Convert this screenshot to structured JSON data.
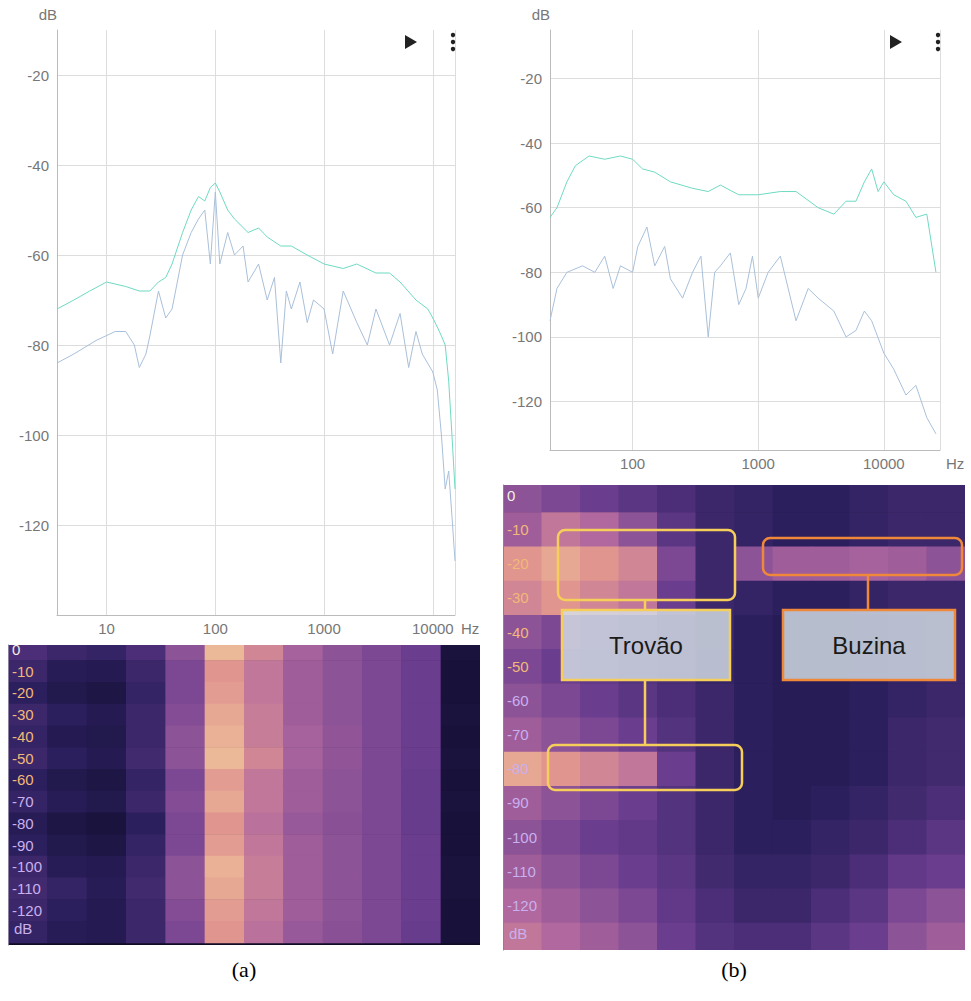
{
  "chart_data": [
    {
      "type": "line",
      "caption": "(a)",
      "log": "x",
      "grid": true,
      "xlabel": "Hz",
      "ylabel": "dB",
      "xlim": [
        3.5,
        16000
      ],
      "xticks": [
        10,
        100,
        1000,
        10000
      ],
      "ylim": [
        -140,
        -10
      ],
      "yticks": [
        -120,
        -100,
        -80,
        -60,
        -40,
        -20
      ],
      "series": [
        {
          "color": "#a9c0da",
          "x": [
            3.5,
            5,
            8,
            12,
            15,
            18,
            20,
            23,
            25,
            30,
            35,
            40,
            50,
            60,
            70,
            80,
            90,
            100,
            110,
            130,
            150,
            180,
            200,
            250,
            300,
            350,
            400,
            450,
            500,
            600,
            700,
            800,
            1000,
            1200,
            1500,
            2000,
            2500,
            3000,
            4000,
            5000,
            6000,
            7000,
            8000,
            10000,
            11000,
            12000,
            13000,
            14000,
            15000,
            16000
          ],
          "values": [
            -84,
            -82,
            -79,
            -77,
            -77,
            -80,
            -85,
            -82,
            -78,
            -68,
            -74,
            -72,
            -60,
            -55,
            -52,
            -50,
            -62,
            -46,
            -62,
            -55,
            -60,
            -58,
            -66,
            -62,
            -70,
            -65,
            -84,
            -68,
            -72,
            -66,
            -75,
            -70,
            -72,
            -82,
            -68,
            -75,
            -80,
            -72,
            -80,
            -73,
            -85,
            -77,
            -82,
            -86,
            -90,
            -100,
            -112,
            -108,
            -118,
            -128
          ]
        },
        {
          "color": "#6fdac2",
          "x": [
            3.5,
            5,
            7,
            10,
            15,
            20,
            25,
            30,
            35,
            40,
            50,
            60,
            70,
            80,
            90,
            100,
            110,
            130,
            150,
            200,
            250,
            300,
            400,
            500,
            700,
            1000,
            1500,
            2000,
            3000,
            4000,
            5000,
            7000,
            9000,
            10000,
            11000,
            12000,
            13000,
            14000,
            15000,
            16000
          ],
          "values": [
            -72,
            -70,
            -68,
            -66,
            -67,
            -68,
            -68,
            -66,
            -65,
            -62,
            -55,
            -50,
            -47,
            -48,
            -45,
            -44,
            -46,
            -50,
            -52,
            -55,
            -54,
            -56,
            -58,
            -58,
            -60,
            -62,
            -63,
            -62,
            -64,
            -64,
            -66,
            -70,
            -72,
            -74,
            -76,
            -78,
            -80,
            -88,
            -100,
            -112
          ]
        }
      ]
    },
    {
      "type": "heatmap",
      "tick_labels": "y",
      "ylabel": "dB",
      "ylim": [
        -136,
        2
      ],
      "yticks": [
        0,
        -10,
        -20,
        -30,
        -40,
        -50,
        -60,
        -70,
        -80,
        -90,
        -100,
        -110,
        -120
      ],
      "zlim": [
        0,
        1
      ],
      "intensity": [
        [
          0.35,
          0.3,
          0.28,
          0.35,
          0.55,
          0.9,
          0.75,
          0.62,
          0.55,
          0.5,
          0.45,
          0.12
        ],
        [
          0.3,
          0.22,
          0.2,
          0.3,
          0.5,
          0.8,
          0.7,
          0.6,
          0.55,
          0.5,
          0.45,
          0.1
        ],
        [
          0.25,
          0.18,
          0.15,
          0.28,
          0.5,
          0.82,
          0.7,
          0.6,
          0.55,
          0.5,
          0.45,
          0.1
        ],
        [
          0.3,
          0.25,
          0.2,
          0.3,
          0.52,
          0.85,
          0.72,
          0.6,
          0.55,
          0.5,
          0.45,
          0.12
        ],
        [
          0.28,
          0.2,
          0.18,
          0.3,
          0.55,
          0.88,
          0.72,
          0.62,
          0.56,
          0.5,
          0.45,
          0.1
        ],
        [
          0.3,
          0.25,
          0.2,
          0.32,
          0.55,
          0.9,
          0.75,
          0.62,
          0.56,
          0.5,
          0.45,
          0.12
        ],
        [
          0.25,
          0.18,
          0.15,
          0.28,
          0.5,
          0.82,
          0.7,
          0.6,
          0.55,
          0.5,
          0.44,
          0.1
        ],
        [
          0.28,
          0.22,
          0.18,
          0.3,
          0.52,
          0.85,
          0.7,
          0.6,
          0.55,
          0.5,
          0.44,
          0.12
        ],
        [
          0.22,
          0.15,
          0.12,
          0.25,
          0.5,
          0.8,
          0.68,
          0.58,
          0.54,
          0.5,
          0.44,
          0.1
        ],
        [
          0.25,
          0.18,
          0.15,
          0.28,
          0.5,
          0.82,
          0.7,
          0.6,
          0.55,
          0.5,
          0.45,
          0.1
        ],
        [
          0.3,
          0.22,
          0.2,
          0.3,
          0.55,
          0.88,
          0.72,
          0.6,
          0.55,
          0.5,
          0.45,
          0.12
        ],
        [
          0.32,
          0.28,
          0.22,
          0.32,
          0.55,
          0.85,
          0.72,
          0.6,
          0.55,
          0.5,
          0.45,
          0.12
        ],
        [
          0.3,
          0.25,
          0.2,
          0.3,
          0.52,
          0.82,
          0.7,
          0.6,
          0.55,
          0.5,
          0.45,
          0.1
        ],
        [
          0.28,
          0.22,
          0.2,
          0.3,
          0.5,
          0.8,
          0.68,
          0.58,
          0.54,
          0.5,
          0.44,
          0.1
        ]
      ]
    },
    {
      "type": "line",
      "caption": "(b)",
      "log": "x",
      "grid": true,
      "xlabel": "Hz",
      "ylabel": "dB",
      "xlim": [
        22,
        28000
      ],
      "xticks": [
        100,
        1000,
        10000
      ],
      "ylim": [
        -135,
        -5
      ],
      "yticks": [
        -120,
        -100,
        -80,
        -60,
        -40,
        -20
      ],
      "series": [
        {
          "color": "#a9c0da",
          "x": [
            22,
            25,
            30,
            40,
            50,
            60,
            70,
            80,
            100,
            110,
            130,
            150,
            180,
            200,
            250,
            300,
            350,
            400,
            450,
            500,
            600,
            700,
            800,
            900,
            1000,
            1200,
            1500,
            2000,
            2500,
            3000,
            4000,
            5000,
            6000,
            7000,
            8000,
            10000,
            12000,
            15000,
            18000,
            22000,
            26000
          ],
          "values": [
            -95,
            -85,
            -80,
            -78,
            -80,
            -75,
            -85,
            -78,
            -80,
            -72,
            -66,
            -78,
            -72,
            -82,
            -88,
            -80,
            -75,
            -100,
            -80,
            -78,
            -74,
            -90,
            -85,
            -75,
            -88,
            -80,
            -75,
            -95,
            -85,
            -88,
            -92,
            -100,
            -98,
            -92,
            -95,
            -105,
            -110,
            -118,
            -115,
            -125,
            -130
          ]
        },
        {
          "color": "#6fdac2",
          "x": [
            22,
            25,
            30,
            35,
            45,
            60,
            80,
            100,
            120,
            150,
            200,
            300,
            400,
            500,
            700,
            1000,
            1500,
            2000,
            3000,
            4000,
            5000,
            6000,
            7000,
            8000,
            9000,
            10000,
            12000,
            15000,
            18000,
            22000,
            26000
          ],
          "values": [
            -63,
            -60,
            -52,
            -47,
            -44,
            -45,
            -44,
            -45,
            -48,
            -49,
            -52,
            -54,
            -55,
            -53,
            -56,
            -56,
            -55,
            -55,
            -60,
            -62,
            -58,
            -58,
            -52,
            -48,
            -55,
            -52,
            -56,
            -58,
            -63,
            -62,
            -80
          ]
        }
      ]
    },
    {
      "type": "heatmap",
      "tick_labels": "y",
      "ylabel": "dB",
      "ylim": [
        -133,
        3
      ],
      "yticks": [
        0,
        -10,
        -20,
        -30,
        -40,
        -50,
        -60,
        -70,
        -80,
        -90,
        -100,
        -110,
        -120
      ],
      "zlim": [
        0,
        1
      ],
      "annotations": [
        {
          "text": "Trovão",
          "color": "#f5cf5a"
        },
        {
          "text": "Buzina",
          "color": "#f0883a"
        }
      ],
      "intensity": [
        [
          0.55,
          0.5,
          0.45,
          0.4,
          0.35,
          0.3,
          0.28,
          0.25,
          0.25,
          0.28,
          0.3,
          0.3
        ],
        [
          0.6,
          0.7,
          0.65,
          0.55,
          0.4,
          0.3,
          0.28,
          0.25,
          0.25,
          0.28,
          0.3,
          0.3
        ],
        [
          0.8,
          0.85,
          0.8,
          0.75,
          0.5,
          0.3,
          0.55,
          0.6,
          0.6,
          0.62,
          0.6,
          0.55
        ],
        [
          0.75,
          0.8,
          0.75,
          0.7,
          0.45,
          0.3,
          0.28,
          0.25,
          0.25,
          0.28,
          0.3,
          0.3
        ],
        [
          0.55,
          0.5,
          0.45,
          0.4,
          0.35,
          0.3,
          0.25,
          0.22,
          0.22,
          0.25,
          0.28,
          0.3
        ],
        [
          0.5,
          0.45,
          0.42,
          0.38,
          0.35,
          0.28,
          0.25,
          0.22,
          0.22,
          0.25,
          0.28,
          0.3
        ],
        [
          0.55,
          0.5,
          0.45,
          0.4,
          0.35,
          0.3,
          0.25,
          0.22,
          0.22,
          0.25,
          0.28,
          0.3
        ],
        [
          0.6,
          0.55,
          0.5,
          0.45,
          0.38,
          0.3,
          0.25,
          0.22,
          0.22,
          0.25,
          0.3,
          0.32
        ],
        [
          0.85,
          0.8,
          0.75,
          0.7,
          0.45,
          0.3,
          0.25,
          0.22,
          0.22,
          0.25,
          0.3,
          0.32
        ],
        [
          0.6,
          0.55,
          0.5,
          0.45,
          0.38,
          0.3,
          0.25,
          0.22,
          0.25,
          0.28,
          0.32,
          0.35
        ],
        [
          0.55,
          0.5,
          0.45,
          0.42,
          0.38,
          0.3,
          0.25,
          0.25,
          0.28,
          0.3,
          0.35,
          0.4
        ],
        [
          0.6,
          0.55,
          0.5,
          0.45,
          0.4,
          0.32,
          0.28,
          0.28,
          0.3,
          0.35,
          0.42,
          0.45
        ],
        [
          0.65,
          0.6,
          0.55,
          0.5,
          0.42,
          0.35,
          0.3,
          0.3,
          0.35,
          0.4,
          0.5,
          0.55
        ],
        [
          0.7,
          0.65,
          0.6,
          0.55,
          0.45,
          0.38,
          0.35,
          0.35,
          0.4,
          0.45,
          0.55,
          0.6
        ]
      ]
    }
  ]
}
